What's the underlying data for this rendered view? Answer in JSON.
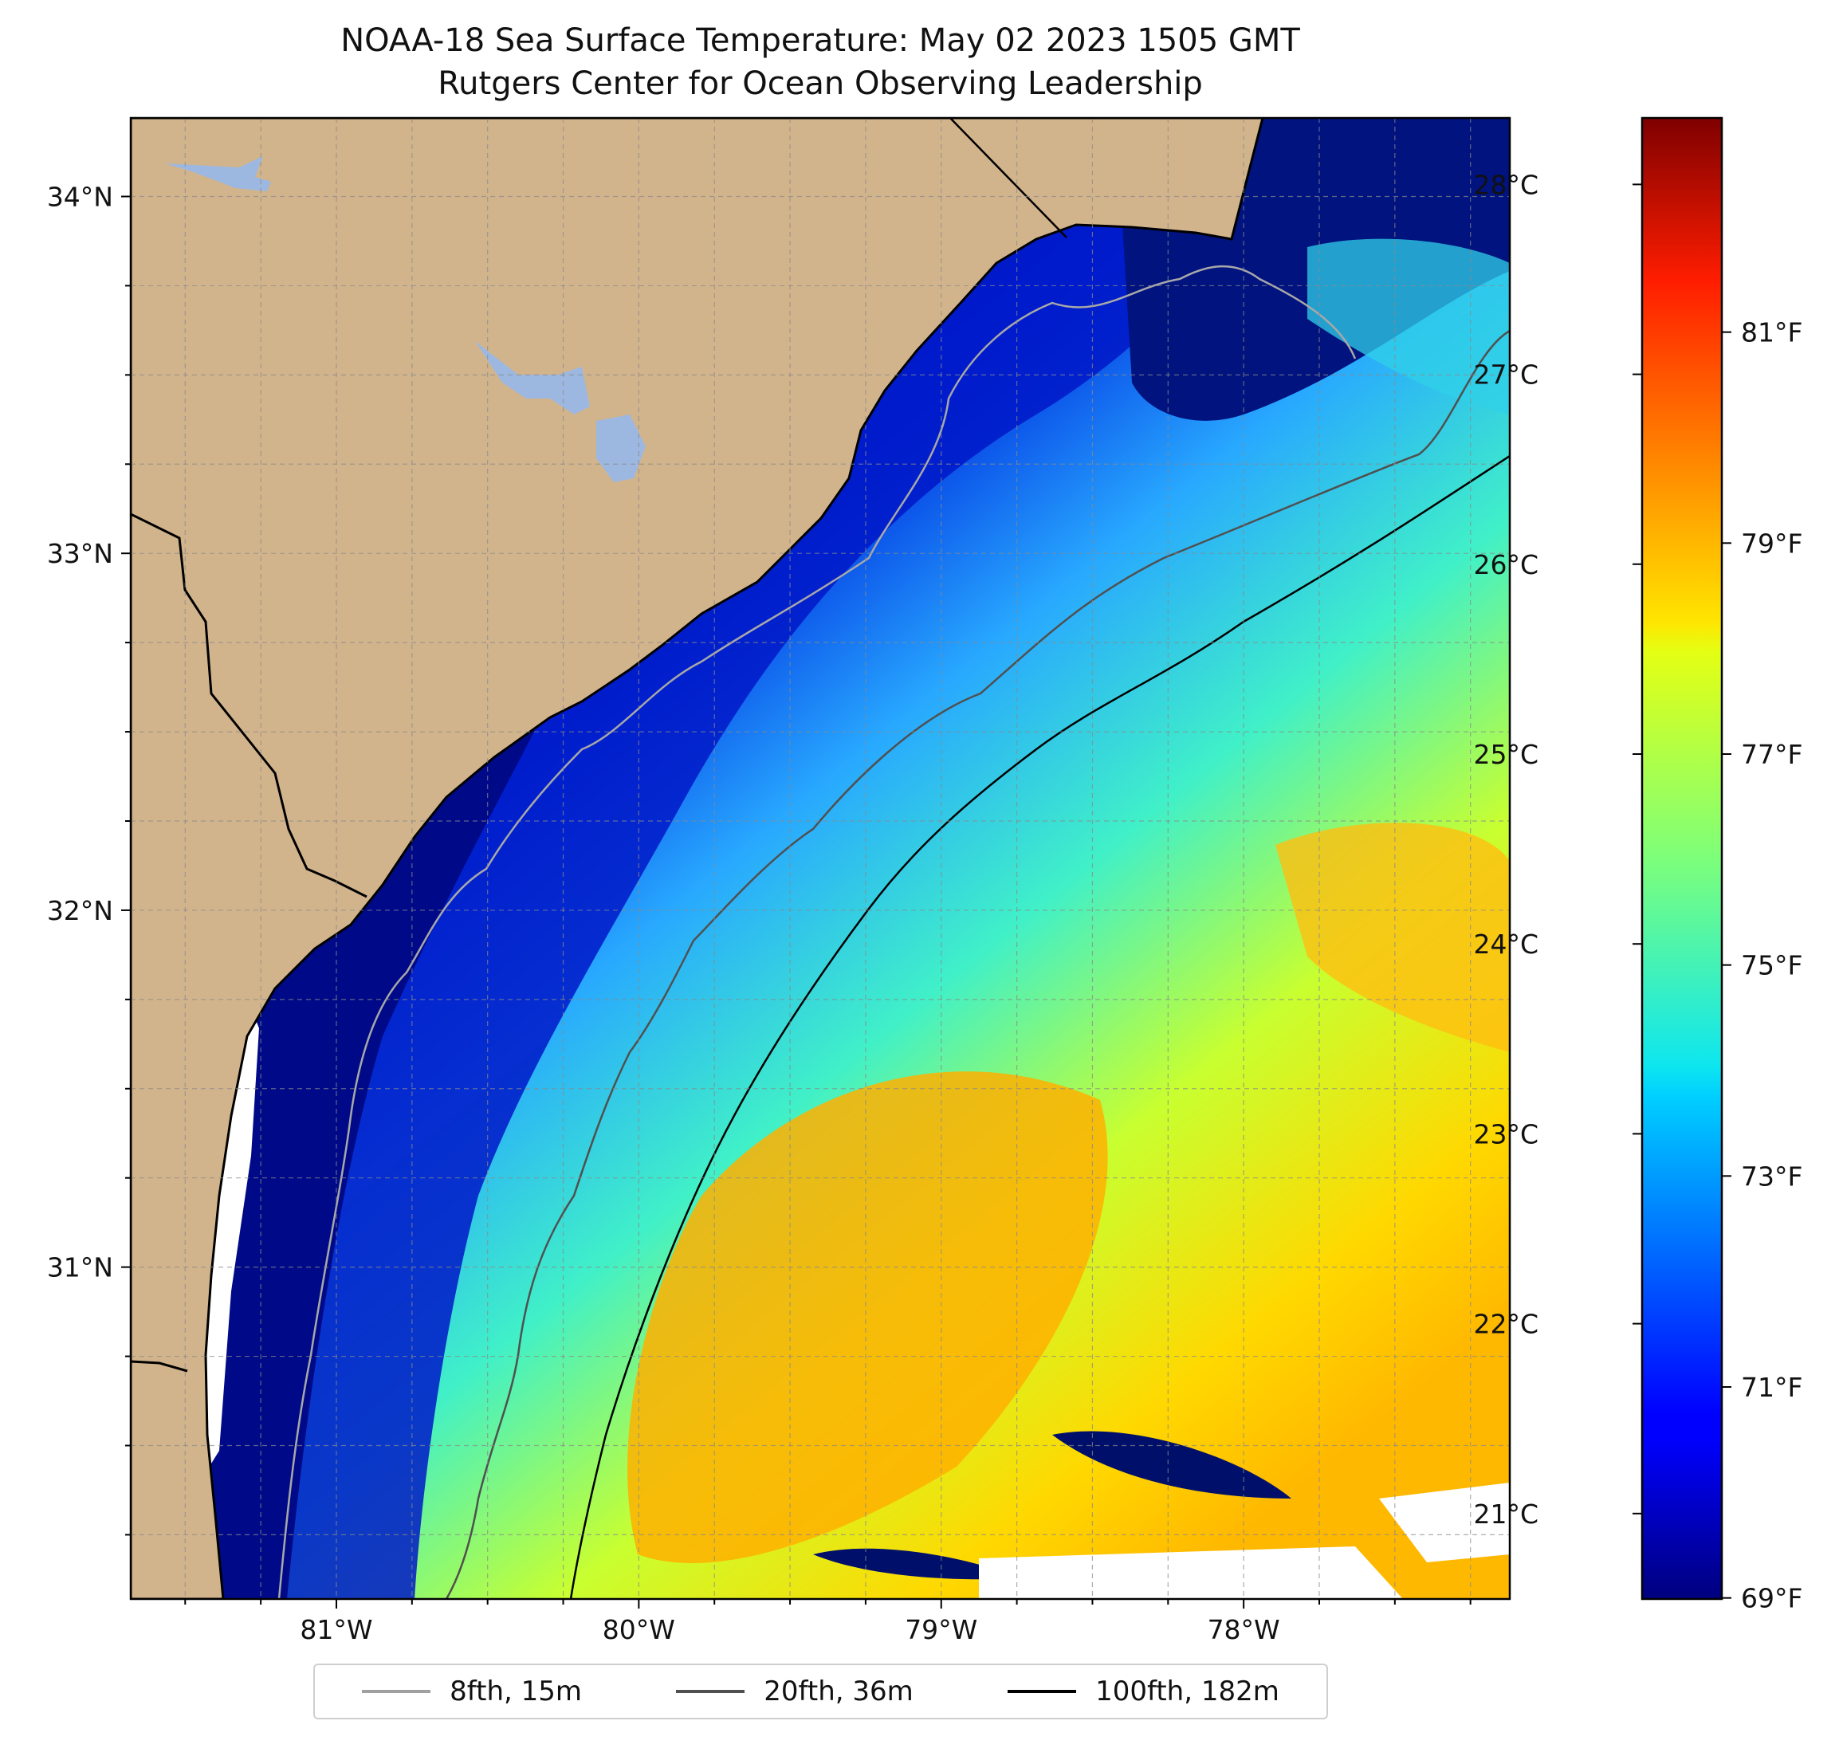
{
  "title": "NOAA-18 Sea Surface Temperature: May 02 2023 1505 GMT",
  "subtitle": "Rutgers Center for Ocean Observing Leadership",
  "map": {
    "lon_range": [
      -81.68,
      -77.12
    ],
    "lat_range": [
      30.07,
      34.22
    ],
    "lon_labels": [
      "81°W",
      "80°W",
      "79°W",
      "78°W"
    ],
    "lat_labels": [
      "34°N",
      "33°N",
      "32°N",
      "31°N"
    ],
    "gridlines": true,
    "land_color": "#d2b48c",
    "lake_color": "#9cb8e0",
    "coast_color": "#000000"
  },
  "colorbar": {
    "colormap": "jet",
    "celsius_labels": [
      "28°C",
      "27°C",
      "26°C",
      "25°C",
      "24°C",
      "23°C",
      "22°C",
      "21°C"
    ],
    "celsius_values": [
      28,
      27,
      26,
      25,
      24,
      23,
      22,
      21
    ],
    "fahrenheit_labels": [
      "81°F",
      "79°F",
      "77°F",
      "75°F",
      "73°F",
      "71°F",
      "69°F"
    ],
    "fahrenheit_values": [
      81,
      79,
      77,
      75,
      73,
      71,
      69
    ],
    "range_celsius": [
      20.55,
      28.35
    ]
  },
  "legend": [
    {
      "label": "8fth, 15m",
      "color": "#a0a0a0"
    },
    {
      "label": "20fth, 36m",
      "color": "#505050"
    },
    {
      "label": "100fth, 182m",
      "color": "#000000"
    }
  ]
}
